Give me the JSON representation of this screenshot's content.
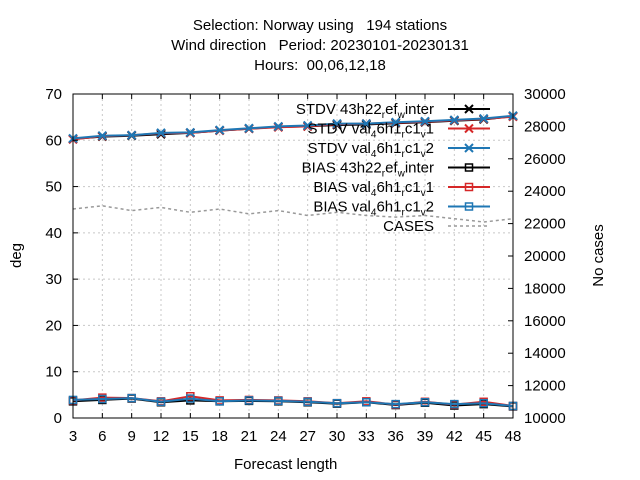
{
  "header": {
    "line1": "Selection: Norway using   194 stations",
    "line2": "Wind direction   Period: 20230101-20230131",
    "line3": "Hours:  00,06,12,18"
  },
  "chart_data": {
    "type": "line",
    "xlabel": "Forecast length",
    "ylabel": "deg",
    "y2label": "No cases",
    "x": [
      3,
      6,
      9,
      12,
      15,
      18,
      21,
      24,
      27,
      30,
      33,
      36,
      39,
      42,
      45,
      48
    ],
    "xlim": [
      3,
      48
    ],
    "ylim": [
      0,
      70
    ],
    "y2lim": [
      10000,
      30000
    ],
    "xticks": [
      "3",
      "6",
      "9",
      "12",
      "15",
      "18",
      "21",
      "24",
      "27",
      "30",
      "33",
      "36",
      "39",
      "42",
      "45",
      "48"
    ],
    "yticks": [
      "0",
      "10",
      "20",
      "30",
      "40",
      "50",
      "60",
      "70"
    ],
    "y2ticks": [
      "10000",
      "12000",
      "14000",
      "16000",
      "18000",
      "20000",
      "22000",
      "24000",
      "26000",
      "28000",
      "30000"
    ],
    "grid": true,
    "legend_position": "top-right",
    "series": [
      {
        "name": "STDV 43h22_ref_winter",
        "label_parts": [
          "STDV 43h22",
          "r",
          "ef",
          "w",
          "inter"
        ],
        "color": "#000000",
        "marker": "x",
        "axis": "y",
        "values": [
          60.3,
          60.8,
          61.0,
          61.3,
          61.6,
          62.1,
          62.5,
          62.9,
          63.0,
          63.3,
          63.4,
          63.7,
          63.9,
          64.2,
          64.5,
          65.2
        ]
      },
      {
        "name": "STDV val_46h1_rc1_v1",
        "label_parts": [
          "STDV val",
          "4",
          "6h1",
          "r",
          "c1",
          "v",
          "1"
        ],
        "color": "#d62728",
        "marker": "x",
        "axis": "y",
        "values": [
          60.2,
          60.9,
          61.1,
          61.5,
          61.6,
          62.1,
          62.5,
          62.8,
          63.0,
          63.5,
          63.6,
          63.8,
          64.0,
          64.3,
          64.6,
          65.1
        ]
      },
      {
        "name": "STDV val_46h1_rc1_v2",
        "label_parts": [
          "STDV val",
          "4",
          "6h1",
          "r",
          "c1",
          "v",
          "2"
        ],
        "color": "#1f77b4",
        "marker": "x",
        "axis": "y",
        "values": [
          60.4,
          61.0,
          61.1,
          61.6,
          61.7,
          62.2,
          62.6,
          63.0,
          63.2,
          63.6,
          63.6,
          63.9,
          64.1,
          64.4,
          64.7,
          65.3
        ]
      },
      {
        "name": "BIAS 43h22_ref_winter",
        "label_parts": [
          "BIAS 43h22",
          "r",
          "ef",
          "w",
          "inter"
        ],
        "color": "#000000",
        "marker": "square",
        "axis": "y",
        "values": [
          3.6,
          3.9,
          4.2,
          3.4,
          3.8,
          3.6,
          3.7,
          3.6,
          3.4,
          3.1,
          3.4,
          2.8,
          3.3,
          2.7,
          3.0,
          2.5
        ]
      },
      {
        "name": "BIAS val_46h1_rc1_v1",
        "label_parts": [
          "BIAS val",
          "4",
          "6h1",
          "r",
          "c1",
          "v",
          "1"
        ],
        "color": "#d62728",
        "marker": "square",
        "axis": "y",
        "values": [
          3.8,
          4.4,
          4.3,
          3.6,
          4.7,
          3.8,
          3.9,
          3.8,
          3.6,
          3.2,
          3.6,
          2.9,
          3.5,
          2.9,
          3.5,
          2.6
        ]
      },
      {
        "name": "BIAS val_46h1_rc1_v2",
        "label_parts": [
          "BIAS val",
          "4",
          "6h1",
          "r",
          "c1",
          "v",
          "2"
        ],
        "color": "#1f77b4",
        "marker": "square",
        "axis": "y",
        "values": [
          3.9,
          4.1,
          4.3,
          3.5,
          4.2,
          3.6,
          3.8,
          3.7,
          3.5,
          3.2,
          3.4,
          3.0,
          3.4,
          3.0,
          3.2,
          2.6
        ]
      },
      {
        "name": "CASES",
        "label_parts": [
          "CASES"
        ],
        "color": "#999999",
        "marker": "none",
        "dashed": true,
        "axis": "y2",
        "values": [
          22900,
          23100,
          22800,
          23000,
          22700,
          22900,
          22600,
          22800,
          22500,
          22700,
          22500,
          22400,
          22500,
          22300,
          22100,
          22300
        ]
      }
    ]
  }
}
